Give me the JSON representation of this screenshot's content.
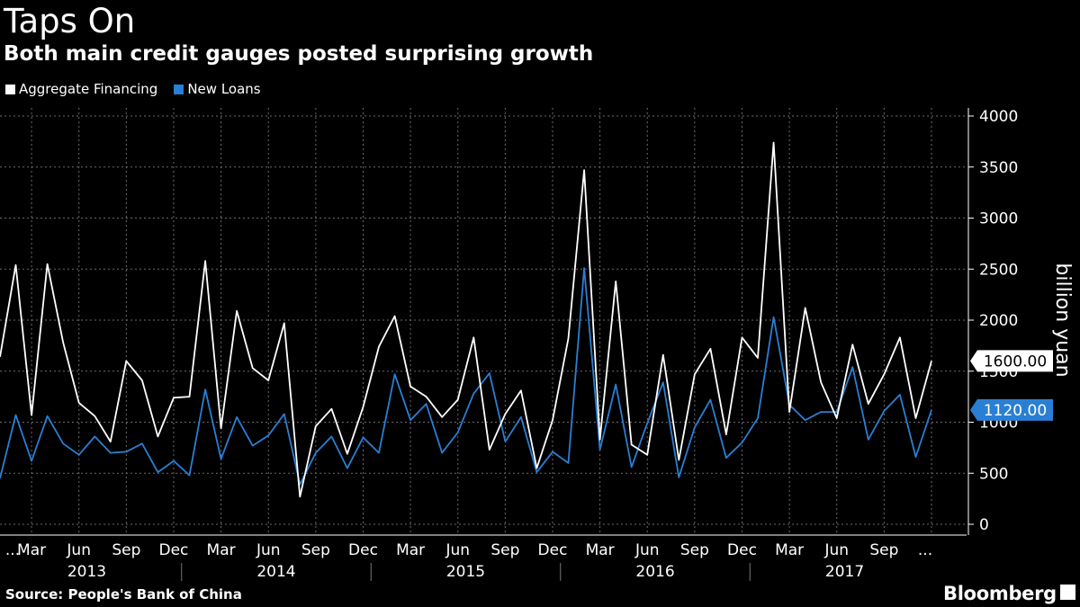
{
  "header": {
    "title": "Taps On",
    "subtitle": "Both main credit gauges posted surprising growth"
  },
  "footer": {
    "source": "Source: People's Bank of China",
    "brand": "Bloomberg"
  },
  "colors": {
    "background": "#000000",
    "aggregate": "#ffffff",
    "loans": "#2a7fd4",
    "grid": "#6b6b6b"
  },
  "chart_data": {
    "type": "line",
    "title": "Taps On",
    "subtitle": "Both main credit gauges posted surprising growth",
    "ylabel": "billion yuan",
    "ylim": [
      0,
      4000
    ],
    "yticks": [
      0,
      500,
      1000,
      1500,
      2000,
      2500,
      3000,
      3500,
      4000
    ],
    "y_axis_side": "right",
    "grid": true,
    "legend_position": "top-left",
    "x_start": "2013-01",
    "x_end": "2017-10",
    "month_tick_labels": [
      "...",
      "Mar",
      "Jun",
      "Sep",
      "Dec",
      "Mar",
      "Jun",
      "Sep",
      "Dec",
      "Mar",
      "Jun",
      "Sep",
      "Dec",
      "Mar",
      "Jun",
      "Sep",
      "Dec",
      "Mar",
      "Jun",
      "Sep",
      "..."
    ],
    "year_labels": [
      "2013",
      "2014",
      "2015",
      "2016",
      "2017"
    ],
    "series": [
      {
        "name": "Aggregate Financing",
        "color": "#ffffff",
        "last_value_label": "1600.00",
        "values": [
          1640,
          2540,
          1070,
          2550,
          1780,
          1190,
          1060,
          810,
          1600,
          1410,
          860,
          1240,
          1250,
          2580,
          940,
          2090,
          1530,
          1410,
          1970,
          270,
          960,
          1130,
          690,
          1150,
          1740,
          2040,
          1350,
          1250,
          1050,
          1220,
          1830,
          730,
          1080,
          1310,
          550,
          1020,
          1820,
          3470,
          830,
          2380,
          780,
          680,
          1660,
          630,
          1470,
          1720,
          880,
          1830,
          1630,
          3740,
          1100,
          2120,
          1390,
          1040,
          1760,
          1180,
          1470,
          1830,
          1040,
          1600
        ]
      },
      {
        "name": "New Loans",
        "color": "#2a7fd4",
        "last_value_label": "1120.00",
        "values": [
          450,
          1070,
          620,
          1060,
          790,
          680,
          860,
          700,
          710,
          790,
          510,
          620,
          480,
          1320,
          640,
          1050,
          770,
          870,
          1080,
          390,
          700,
          860,
          550,
          850,
          700,
          1470,
          1020,
          1180,
          700,
          900,
          1280,
          1480,
          810,
          1050,
          510,
          710,
          600,
          2510,
          730,
          1370,
          560,
          990,
          1390,
          460,
          950,
          1220,
          650,
          800,
          1040,
          2030,
          1170,
          1020,
          1100,
          1100,
          1540,
          830,
          1110,
          1270,
          660,
          1120
        ]
      }
    ]
  }
}
